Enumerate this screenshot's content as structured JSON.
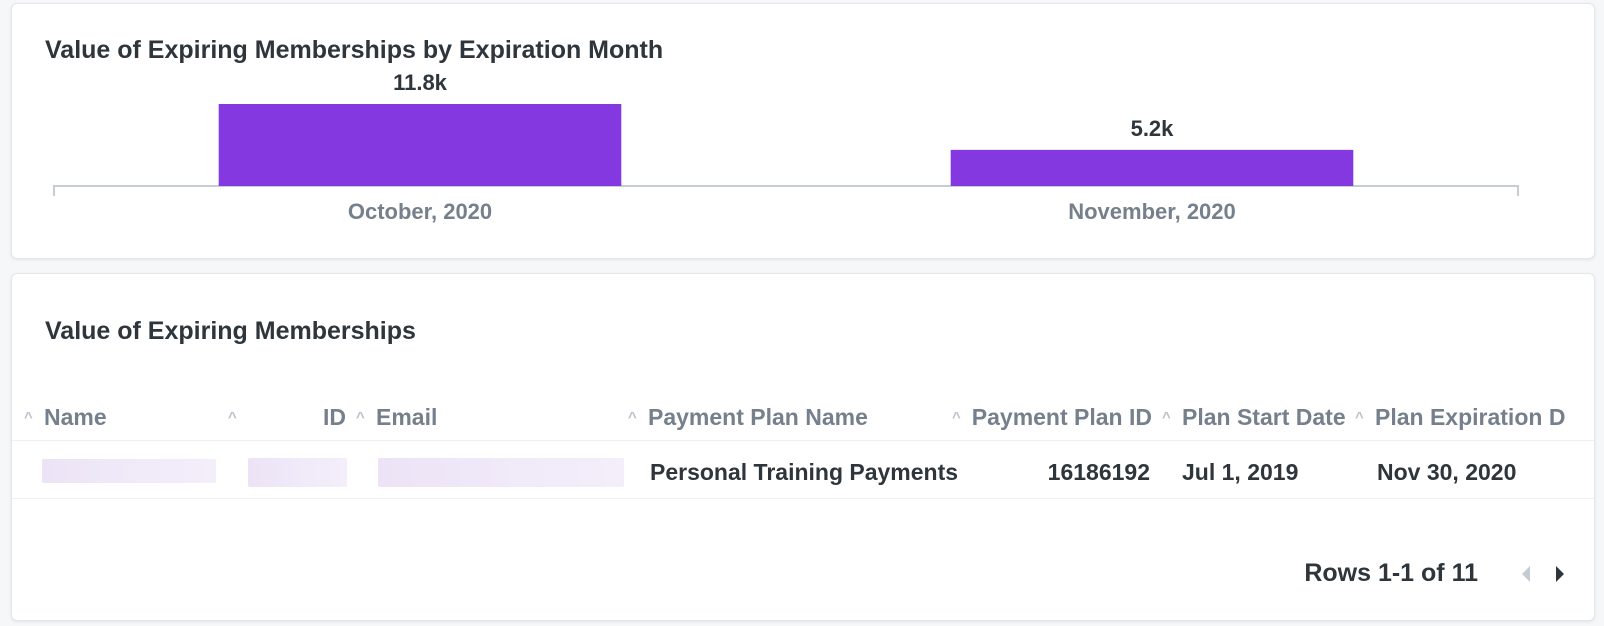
{
  "chart_card": {
    "title": "Value of Expiring Memberships by Expiration Month"
  },
  "chart_data": {
    "type": "bar",
    "title": "Value of Expiring Memberships by Expiration Month",
    "categories": [
      "October, 2020",
      "November, 2020"
    ],
    "values": [
      11800,
      5200
    ],
    "data_labels": [
      "11.8k",
      "5.2k"
    ],
    "xlabel": "",
    "ylabel": "",
    "ylim": [
      0,
      11800
    ],
    "grid": false,
    "bar_color": "#8439e0"
  },
  "table_card": {
    "title": "Value of Expiring Memberships",
    "columns": [
      "Name",
      "ID",
      "Email",
      "Payment Plan Name",
      "Payment Plan ID",
      "Plan Start Date",
      "Plan Expiration D"
    ],
    "rows": [
      [
        "",
        "",
        "",
        "Personal Training Payments",
        "16186192",
        "Jul 1, 2019",
        "Nov 30, 2020"
      ]
    ],
    "pagination": {
      "label": "Rows 1-1 of 11",
      "prev_icon": "chevron-left-icon",
      "next_icon": "chevron-right-icon"
    },
    "sort_icon": "caret-up-icon"
  }
}
